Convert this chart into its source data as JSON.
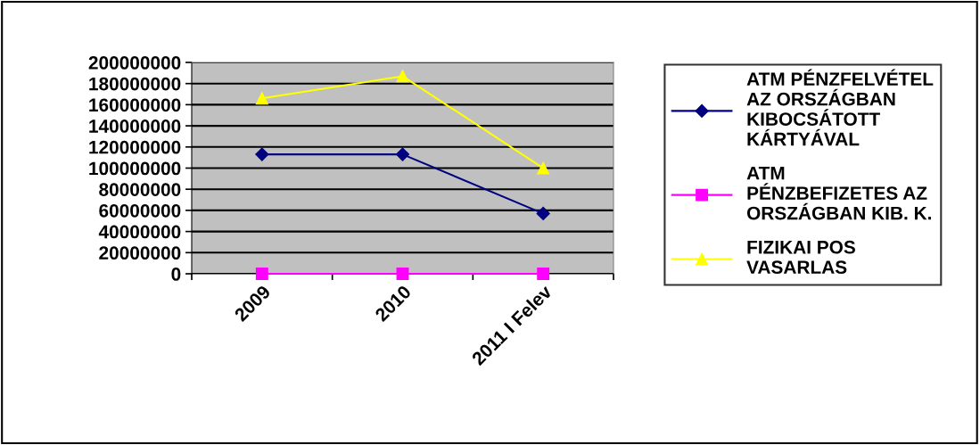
{
  "chart_data": {
    "type": "line",
    "categories": [
      "2009",
      "2010",
      "2011 I Felev"
    ],
    "series": [
      {
        "name": "ATM PÉNZFELVÉTEL\nAZ ORSZÁGBAN\nKIBOCSÁTOTT\nKÁRTYÁVAL",
        "color": "#000080",
        "marker": "diamond",
        "values": [
          113000000,
          113000000,
          57000000
        ]
      },
      {
        "name": "ATM\nPÉNZBEFIZETES AZ\nORSZÁGBAN KIB. K.",
        "color": "#ff00ff",
        "marker": "square",
        "values": [
          0,
          0,
          0
        ]
      },
      {
        "name": "FIZIKAI POS\nVASARLAS",
        "color": "#ffff00",
        "marker": "triangle",
        "values": [
          166000000,
          187000000,
          100000000
        ]
      }
    ],
    "ylim": [
      0,
      200000000
    ],
    "yticks": [
      0,
      20000000,
      40000000,
      60000000,
      80000000,
      100000000,
      120000000,
      140000000,
      160000000,
      180000000,
      200000000
    ],
    "grid": "y",
    "legend": "right"
  }
}
